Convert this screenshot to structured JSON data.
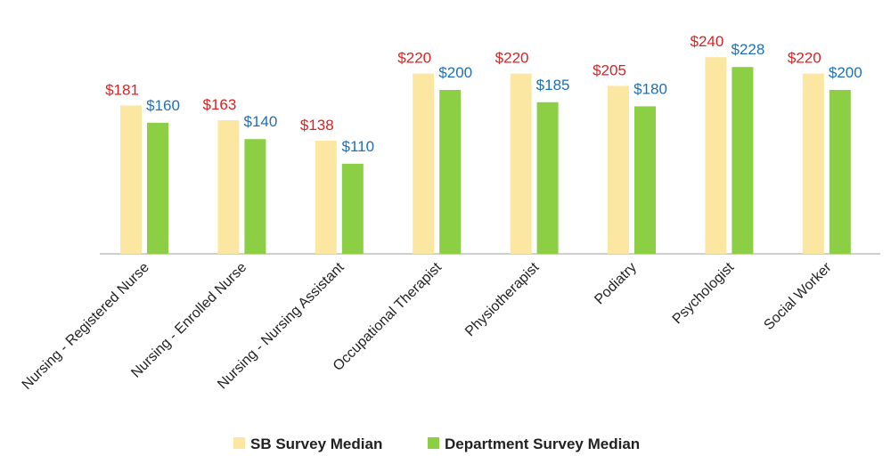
{
  "chart_data": {
    "type": "bar",
    "title": "",
    "xlabel": "",
    "ylabel": "",
    "ylim": [
      0,
      240
    ],
    "grid": false,
    "legend_position": "bottom",
    "value_prefix": "$",
    "categories": [
      "Nursing - Registered Nurse",
      "Nursing - Enrolled Nurse",
      "Nursing - Nursing Assistant",
      "Occupational Therapist",
      "Physiotherapist",
      "Podiatry",
      "Psychologist",
      "Social Worker"
    ],
    "series": [
      {
        "name": "SB Survey Median",
        "values": [
          181,
          163,
          138,
          220,
          220,
          205,
          240,
          220
        ],
        "color": "#FCE7A2",
        "label_color": "#E02020"
      },
      {
        "name": "Department Survey Median",
        "values": [
          160,
          140,
          110,
          200,
          185,
          180,
          228,
          200
        ],
        "color": "#8CCF45",
        "label_color": "#1F6FB5"
      }
    ]
  }
}
